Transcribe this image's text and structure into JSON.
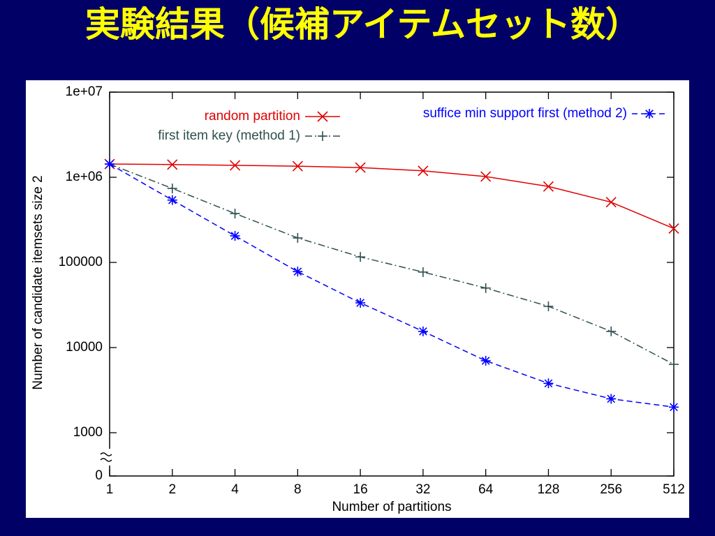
{
  "chart_data": {
    "type": "line",
    "title": "実験結果（候補アイテムセット数）",
    "xlabel": "Number of partitions",
    "ylabel": "Number of candidate itemsets size 2",
    "x": [
      1,
      2,
      4,
      8,
      16,
      32,
      64,
      128,
      256,
      512
    ],
    "xlim": [
      1,
      512
    ],
    "xscale": "log",
    "xticks": [
      1,
      2,
      4,
      8,
      16,
      32,
      64,
      128,
      256,
      512
    ],
    "ylim": [
      0,
      10000000
    ],
    "yscale": "log",
    "axis_break": true,
    "yticks": [
      0,
      1000,
      10000,
      100000,
      {
        "value": 1000000,
        "label": "1e+06"
      },
      {
        "value": 10000000,
        "label": "1e+07"
      }
    ],
    "legend": "top",
    "series": [
      {
        "name": "random partition",
        "color": "#e00000",
        "marker": "x",
        "dash": "solid",
        "values": [
          1430000,
          1410000,
          1380000,
          1350000,
          1300000,
          1190000,
          1020000,
          780000,
          510000,
          250000
        ]
      },
      {
        "name": "first item key (method 1)",
        "color": "#2f4f4f",
        "marker": "+",
        "dash": "dashdot",
        "values": [
          1430000,
          740000,
          375000,
          194000,
          116000,
          77000,
          50000,
          30500,
          15500,
          6350
        ]
      },
      {
        "name": "suffice min support first (method 2)",
        "color": "#0000ff",
        "marker": "*",
        "dash": "dashed",
        "values": [
          1430000,
          540000,
          205000,
          78000,
          33500,
          15500,
          7000,
          3800,
          2500,
          2000
        ]
      }
    ]
  }
}
